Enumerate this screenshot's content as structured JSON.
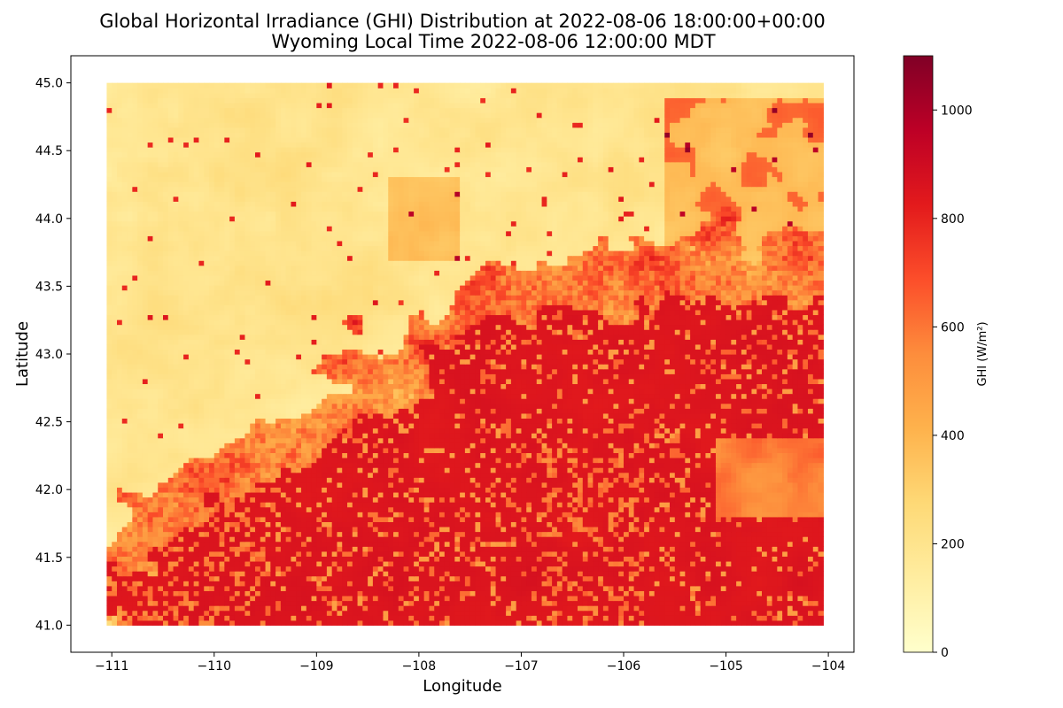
{
  "chart_data": {
    "type": "heatmap",
    "title_line1": "Global Horizontal Irradiance (GHI) Distribution at 2022-08-06 18:00:00+00:00",
    "title_line2": "Wyoming Local Time 2022-08-06 12:00:00 MDT",
    "xlabel": "Longitude",
    "ylabel": "Latitude",
    "xlim": [
      -111.4,
      -103.75
    ],
    "ylim": [
      40.8,
      45.2
    ],
    "xticks": [
      -111,
      -110,
      -109,
      -108,
      -107,
      -106,
      -105,
      -104
    ],
    "xtick_labels": [
      "−111",
      "−110",
      "−109",
      "−108",
      "−107",
      "−106",
      "−105",
      "−104"
    ],
    "yticks": [
      41.0,
      41.5,
      42.0,
      42.5,
      43.0,
      43.5,
      44.0,
      44.5,
      45.0
    ],
    "ytick_labels": [
      "41.0",
      "41.5",
      "42.0",
      "42.5",
      "43.0",
      "43.5",
      "44.0",
      "44.5",
      "45.0"
    ],
    "data_extent": {
      "lon": [
        -111.05,
        -104.05
      ],
      "lat": [
        41.0,
        45.0
      ]
    },
    "colorbar": {
      "label": "GHI (W/m²)",
      "range": [
        0,
        1100
      ],
      "ticks": [
        0,
        200,
        400,
        600,
        800,
        1000
      ],
      "tick_labels": [
        "0",
        "200",
        "400",
        "600",
        "800",
        "1000"
      ],
      "colormap": "YlOrRd",
      "colors": [
        "#ffffcc",
        "#ffeda0",
        "#fed976",
        "#feb24c",
        "#fd8d3c",
        "#fc4e2a",
        "#e31a1c",
        "#bd0026",
        "#800026"
      ]
    },
    "regions": {
      "high_ghi_value": 850,
      "low_ghi_value": 120,
      "boundary_note": "clouded north-west and north, clear south-east"
    },
    "grid": false
  }
}
